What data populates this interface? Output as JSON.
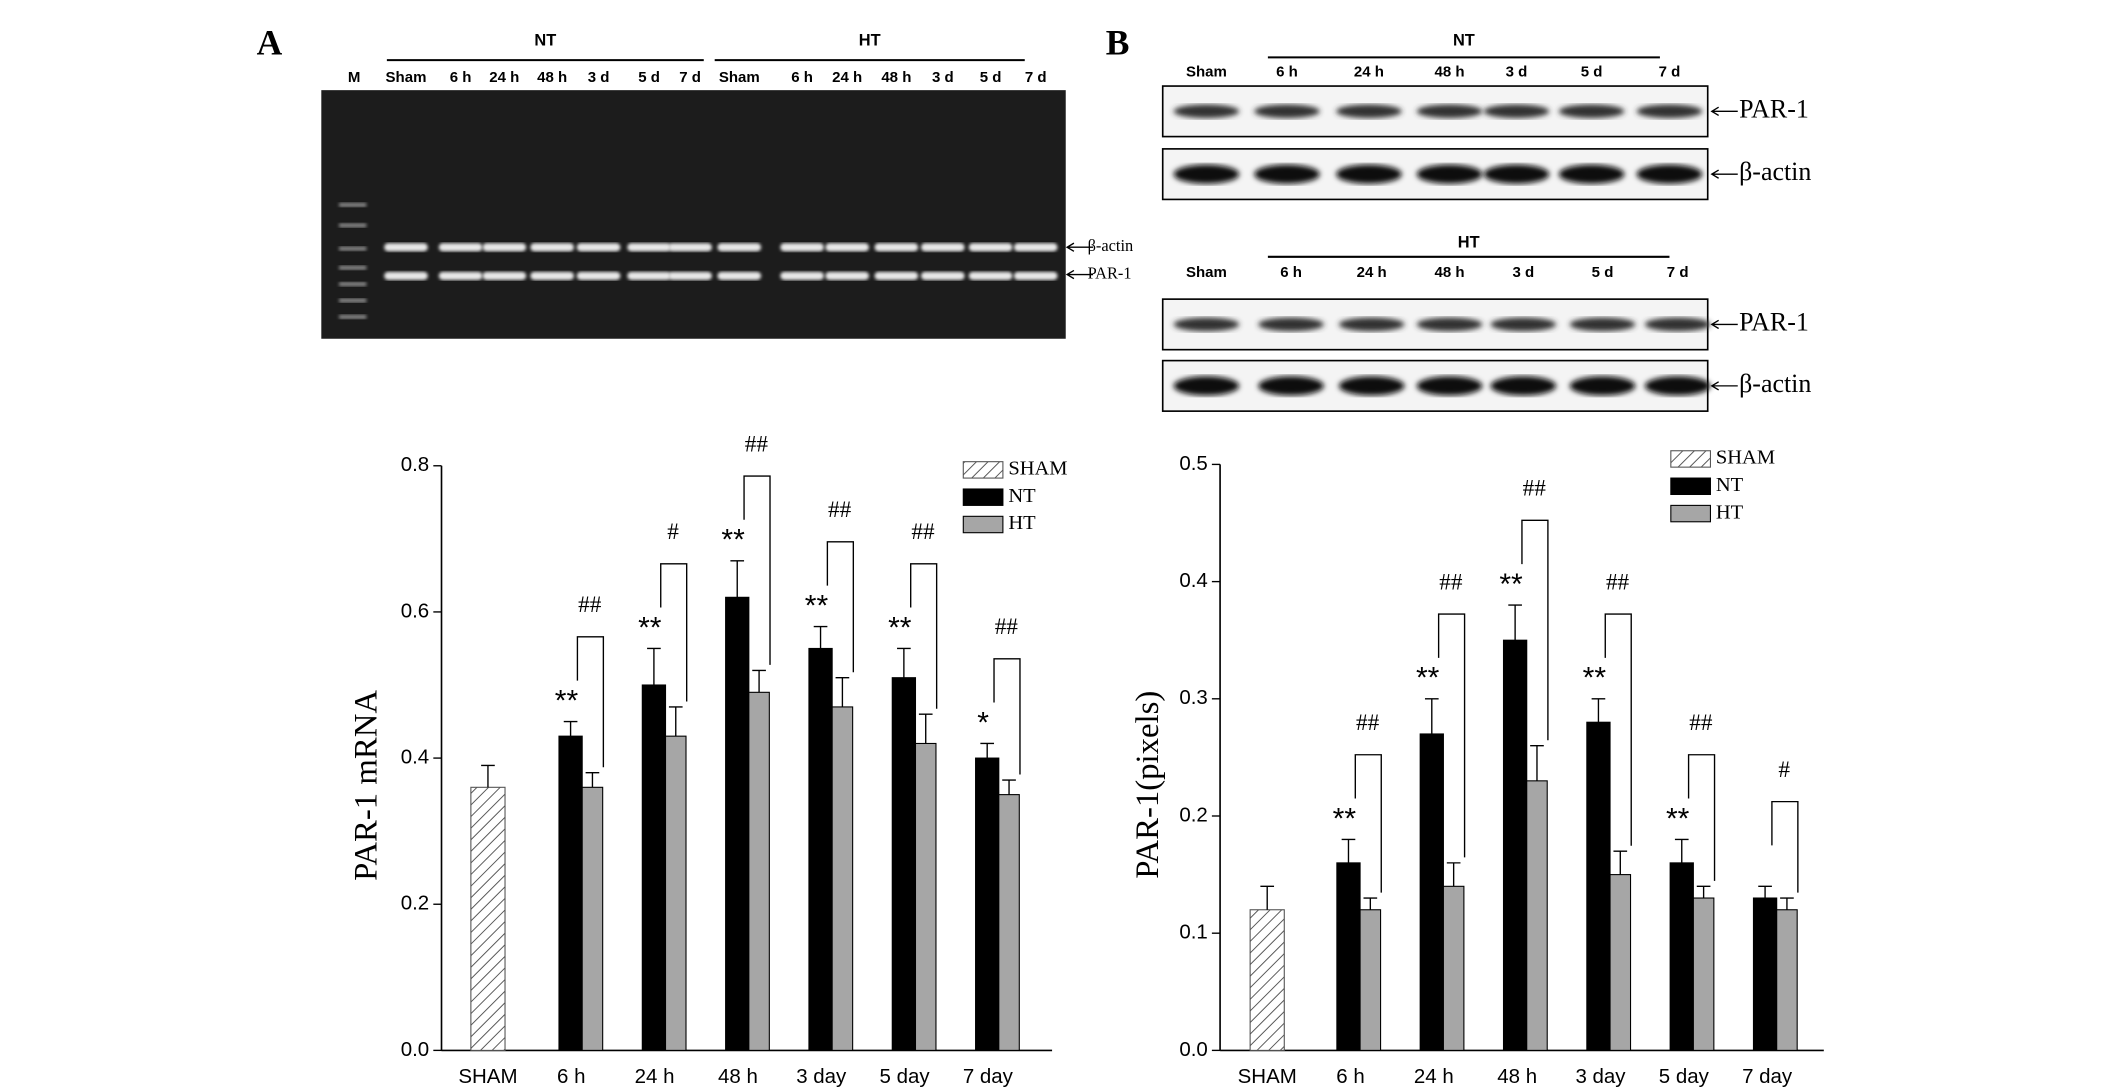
{
  "figure": {
    "panels": [
      "A",
      "B"
    ]
  },
  "gel": {
    "marker": "M",
    "groups": [
      {
        "name": "NT",
        "lanes": [
          "Sham",
          "6 h",
          "24 h",
          "48 h",
          "3 d",
          "5 d",
          "7 d"
        ]
      },
      {
        "name": "HT",
        "lanes": [
          "Sham",
          "6 h",
          "24 h",
          "48 h",
          "3 d",
          "5 d",
          "7 d"
        ]
      }
    ],
    "bands": [
      "β-actin",
      "PAR-1"
    ]
  },
  "blots": [
    {
      "group": "NT",
      "lanes": [
        "Sham",
        "6 h",
        "24 h",
        "48 h",
        "3 d",
        "5 d",
        "7 d"
      ],
      "bands": [
        "PAR-1",
        "β-actin"
      ]
    },
    {
      "group": "HT",
      "lanes": [
        "Sham",
        "6 h",
        "24 h",
        "48 h",
        "3 d",
        "5 d",
        "7 d"
      ],
      "bands": [
        "PAR-1",
        "β-actin"
      ]
    }
  ],
  "chart_data": [
    {
      "type": "bar",
      "y_label": "PAR-1 mRNA",
      "categories": [
        "SHAM",
        "6 h",
        "24 h",
        "48 h",
        "3 day",
        "5 day",
        "7 day"
      ],
      "series": [
        {
          "name": "SHAM",
          "color": "#555555",
          "pattern": "hatch",
          "values": [
            0.36,
            null,
            null,
            null,
            null,
            null,
            null
          ],
          "errors": [
            0.03,
            null,
            null,
            null,
            null,
            null,
            null
          ]
        },
        {
          "name": "NT",
          "color": "#000000",
          "values": [
            null,
            0.43,
            0.5,
            0.62,
            0.55,
            0.51,
            0.4
          ],
          "errors": [
            null,
            0.02,
            0.05,
            0.05,
            0.03,
            0.04,
            0.02
          ]
        },
        {
          "name": "HT",
          "color": "#a6a6a6",
          "values": [
            null,
            0.36,
            0.43,
            0.49,
            0.47,
            0.42,
            0.35
          ],
          "errors": [
            null,
            0.02,
            0.04,
            0.03,
            0.04,
            0.04,
            0.02
          ]
        }
      ],
      "stars": [
        null,
        "**",
        "**",
        "**",
        "**",
        "**",
        "*"
      ],
      "hashes": [
        null,
        "##",
        "#",
        "##",
        "##",
        "##",
        "##"
      ],
      "ylim": [
        0,
        0.8
      ],
      "yticks": [
        {
          "value": 0,
          "label": "0.0"
        },
        0.2,
        0.4,
        0.6,
        0.8
      ],
      "legend": "top-right"
    },
    {
      "type": "bar",
      "y_label": "PAR-1(pixels)",
      "categories": [
        "SHAM",
        "6 h",
        "24 h",
        "48 h",
        "3 day",
        "5 day",
        "7 day"
      ],
      "series": [
        {
          "name": "SHAM",
          "color": "#555555",
          "pattern": "hatch",
          "values": [
            0.12,
            null,
            null,
            null,
            null,
            null,
            null
          ],
          "errors": [
            0.02,
            null,
            null,
            null,
            null,
            null,
            null
          ]
        },
        {
          "name": "NT",
          "color": "#000000",
          "values": [
            null,
            0.16,
            0.27,
            0.35,
            0.28,
            0.16,
            0.13
          ],
          "errors": [
            null,
            0.02,
            0.03,
            0.03,
            0.02,
            0.02,
            0.01
          ]
        },
        {
          "name": "HT",
          "color": "#a6a6a6",
          "values": [
            null,
            0.12,
            0.14,
            0.23,
            0.15,
            0.13,
            0.12
          ],
          "errors": [
            null,
            0.01,
            0.02,
            0.03,
            0.02,
            0.01,
            0.01
          ]
        }
      ],
      "stars": [
        null,
        "**",
        "**",
        "**",
        "**",
        "**",
        null
      ],
      "hashes": [
        null,
        "##",
        "##",
        "##",
        "##",
        "##",
        "#"
      ],
      "ylim": [
        0,
        0.5
      ],
      "yticks": [
        {
          "value": 0,
          "label": "0.0"
        },
        0.1,
        0.2,
        0.3,
        0.4,
        0.5
      ],
      "legend": "top-right"
    }
  ]
}
